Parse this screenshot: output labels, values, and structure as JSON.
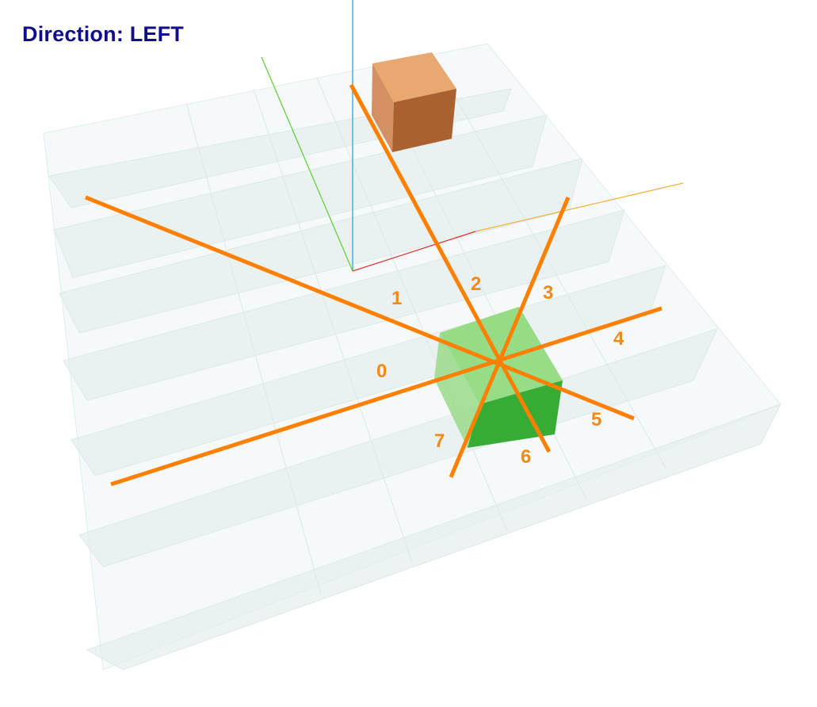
{
  "hud": {
    "direction_text": "Direction: LEFT"
  },
  "scene": {
    "grid_rows": 6,
    "grid_cols": 6,
    "agent": {
      "name": "green-cube",
      "color": "#37b33a"
    },
    "target": {
      "name": "orange-cube",
      "color": "#c97a3f"
    },
    "axes": {
      "x_color": "#e03030",
      "y_color": "#5ad030",
      "z_color": "#3aa8e8",
      "grid_axis_color": "#f0b040"
    },
    "direction_ray_color": "#ff8000",
    "direction_labels": [
      "0",
      "1",
      "2",
      "3",
      "4",
      "5",
      "6",
      "7"
    ]
  }
}
